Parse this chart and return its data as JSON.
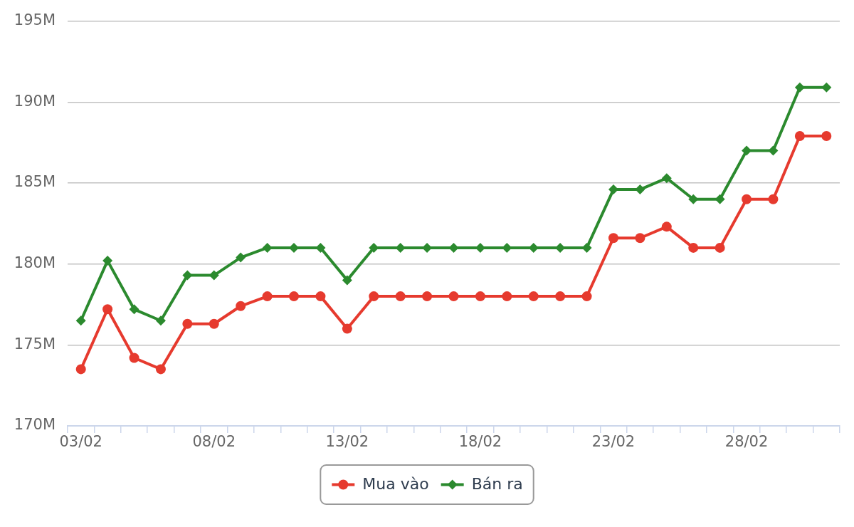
{
  "chart_data": {
    "type": "line",
    "categories": [
      "03/02",
      null,
      null,
      null,
      null,
      "08/02",
      null,
      null,
      null,
      null,
      "13/02",
      null,
      null,
      null,
      null,
      "18/02",
      null,
      null,
      null,
      null,
      "23/02",
      null,
      null,
      null,
      null,
      "28/02",
      null,
      null,
      null
    ],
    "series": [
      {
        "name": "Mua vào",
        "color": "#e63a2e",
        "marker": "circle",
        "values": [
          173.5,
          177.2,
          174.2,
          173.5,
          176.3,
          176.3,
          177.4,
          178,
          178,
          178,
          176,
          178,
          178,
          178,
          178,
          178,
          178,
          178,
          178,
          178,
          181.6,
          181.6,
          182.3,
          181,
          181,
          184,
          184,
          187.9,
          187.9
        ]
      },
      {
        "name": "Bán ra",
        "color": "#2b8a2e",
        "marker": "diamond",
        "values": [
          176.5,
          180.2,
          177.2,
          176.5,
          179.3,
          179.3,
          180.4,
          181,
          181,
          181,
          179,
          181,
          181,
          181,
          181,
          181,
          181,
          181,
          181,
          181,
          184.6,
          184.6,
          185.3,
          184,
          184,
          187,
          187,
          190.9,
          190.9
        ]
      }
    ],
    "ylim": [
      170,
      195
    ],
    "yticks": [
      {
        "value": 170,
        "label": "170M"
      },
      {
        "value": 175,
        "label": "175M"
      },
      {
        "value": 180,
        "label": "180M"
      },
      {
        "value": 185,
        "label": "185M"
      },
      {
        "value": 190,
        "label": "190M"
      },
      {
        "value": 195,
        "label": "195M"
      }
    ],
    "grid": "y",
    "legend": "bottom"
  }
}
